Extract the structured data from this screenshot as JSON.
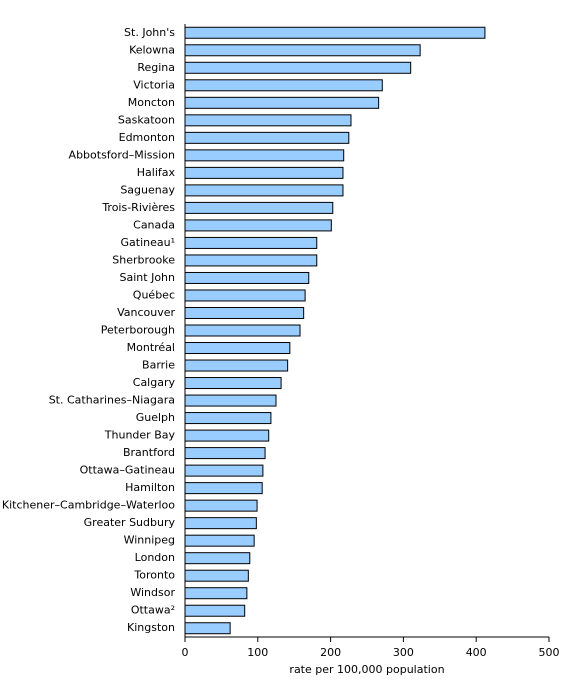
{
  "chart_data": {
    "type": "hbar",
    "x_label": "rate per 100,000 population",
    "categories": [
      "St. John's",
      "Kelowna",
      "Regina",
      "Victoria",
      "Moncton",
      "Saskatoon",
      "Edmonton",
      "Abbotsford–Mission",
      "Halifax",
      "Saguenay",
      "Trois-Rivières",
      "Canada",
      "Gatineau¹",
      "Sherbrooke",
      "Saint John",
      "Québec",
      "Vancouver",
      "Peterborough",
      "Montréal",
      "Barrie",
      "Calgary",
      "St. Catharines–Niagara",
      "Guelph",
      "Thunder Bay",
      "Brantford",
      "Ottawa–Gatineau",
      "Hamilton",
      "Kitchener–Cambridge–Waterloo",
      "Greater Sudbury",
      "Winnipeg",
      "London",
      "Toronto",
      "Windsor",
      "Ottawa²",
      "Kingston"
    ],
    "values": [
      412,
      323,
      310,
      271,
      266,
      228,
      225,
      218,
      217,
      217,
      203,
      201,
      181,
      181,
      170,
      165,
      163,
      158,
      144,
      141,
      132,
      125,
      118,
      115,
      110,
      107,
      106,
      99,
      98,
      95,
      89,
      87,
      85,
      82,
      62
    ],
    "color": "#99ccff",
    "xlim": [
      0,
      500
    ],
    "xticks": [
      0,
      100,
      200,
      300,
      400,
      500
    ]
  }
}
